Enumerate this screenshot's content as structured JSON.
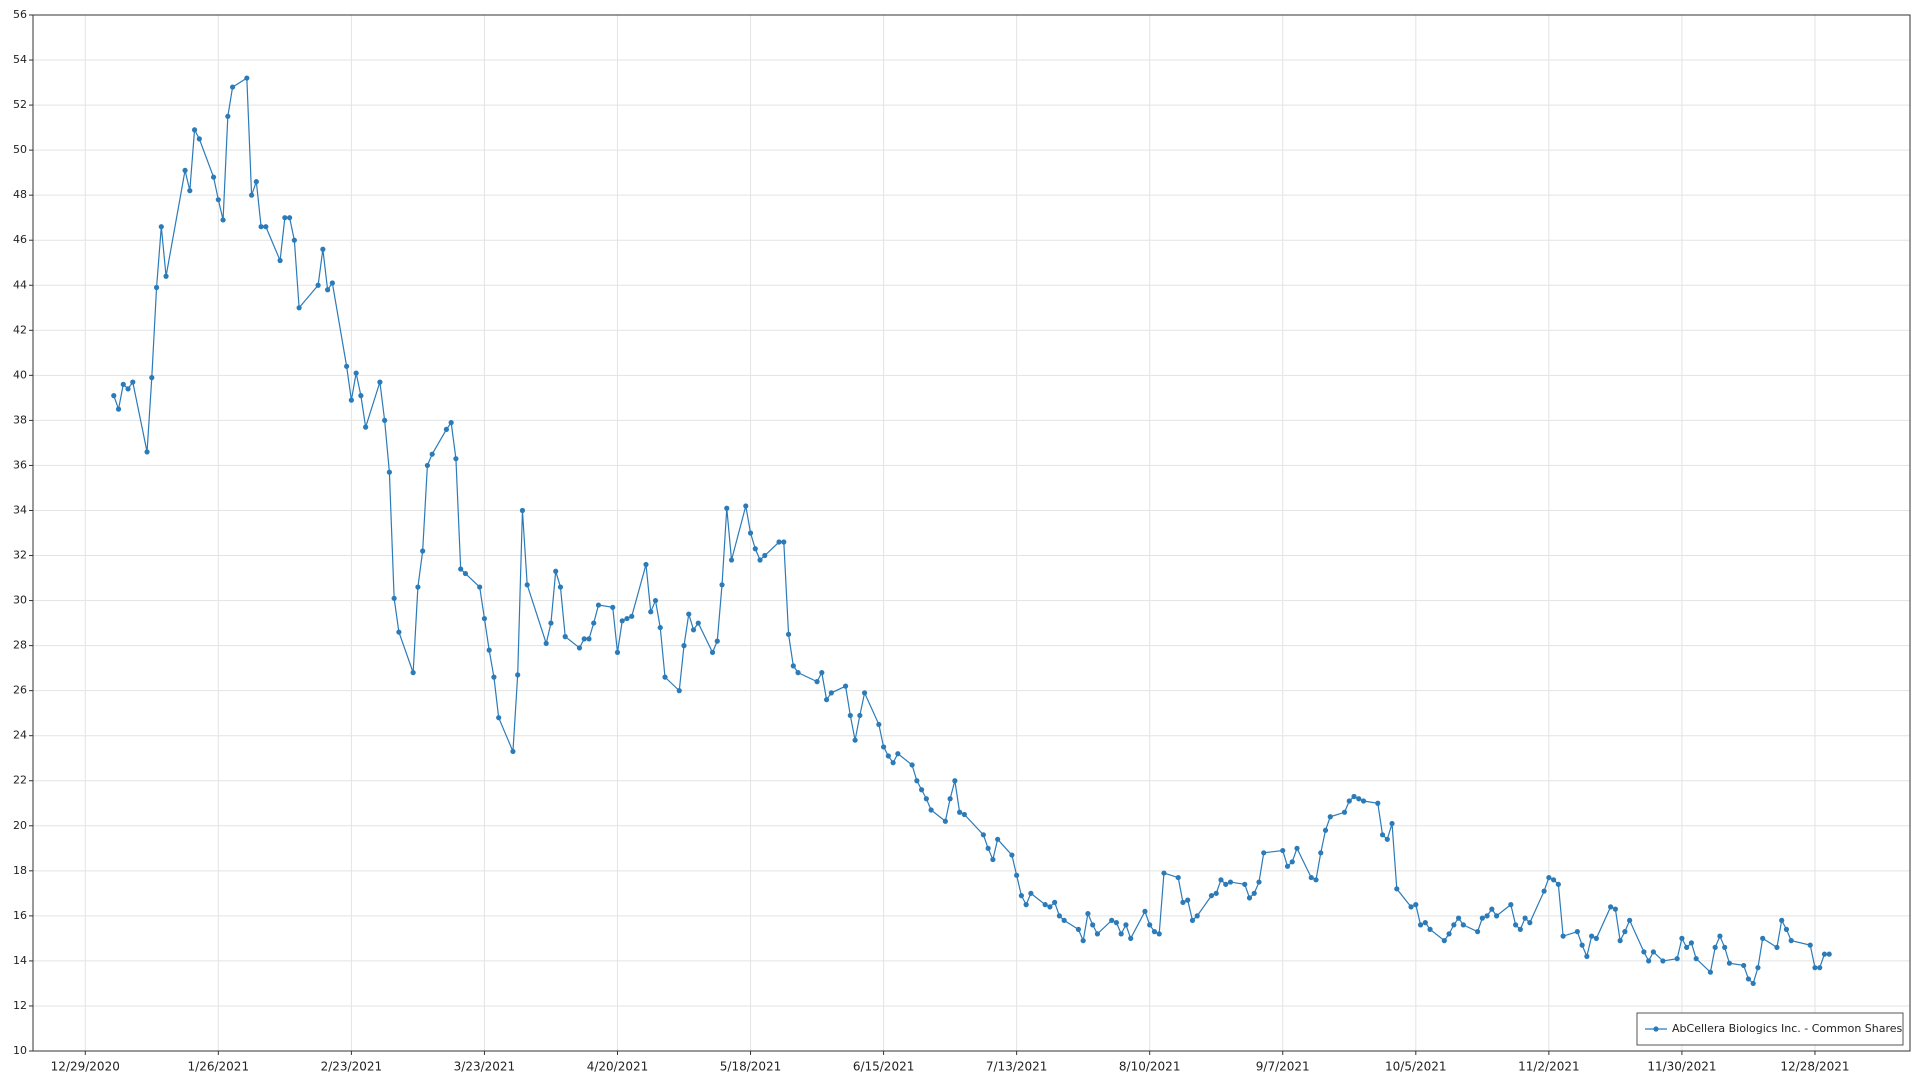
{
  "chart_data": {
    "type": "line",
    "x": [
      "1/4/2021",
      "1/5/2021",
      "1/6/2021",
      "1/7/2021",
      "1/8/2021",
      "1/11/2021",
      "1/12/2021",
      "1/13/2021",
      "1/14/2021",
      "1/15/2021",
      "1/19/2021",
      "1/20/2021",
      "1/21/2021",
      "1/22/2021",
      "1/25/2021",
      "1/26/2021",
      "1/27/2021",
      "1/28/2021",
      "1/29/2021",
      "2/1/2021",
      "2/2/2021",
      "2/3/2021",
      "2/4/2021",
      "2/5/2021",
      "2/8/2021",
      "2/9/2021",
      "2/10/2021",
      "2/11/2021",
      "2/12/2021",
      "2/16/2021",
      "2/17/2021",
      "2/18/2021",
      "2/19/2021",
      "2/22/2021",
      "2/23/2021",
      "2/24/2021",
      "2/25/2021",
      "2/26/2021",
      "3/1/2021",
      "3/2/2021",
      "3/3/2021",
      "3/4/2021",
      "3/5/2021",
      "3/8/2021",
      "3/9/2021",
      "3/10/2021",
      "3/11/2021",
      "3/12/2021",
      "3/15/2021",
      "3/16/2021",
      "3/17/2021",
      "3/18/2021",
      "3/19/2021",
      "3/22/2021",
      "3/23/2021",
      "3/24/2021",
      "3/25/2021",
      "3/26/2021",
      "3/29/2021",
      "3/30/2021",
      "3/31/2021",
      "4/1/2021",
      "4/5/2021",
      "4/6/2021",
      "4/7/2021",
      "4/8/2021",
      "4/9/2021",
      "4/12/2021",
      "4/13/2021",
      "4/14/2021",
      "4/15/2021",
      "4/16/2021",
      "4/19/2021",
      "4/20/2021",
      "4/21/2021",
      "4/22/2021",
      "4/23/2021",
      "4/26/2021",
      "4/27/2021",
      "4/28/2021",
      "4/29/2021",
      "4/30/2021",
      "5/3/2021",
      "5/4/2021",
      "5/5/2021",
      "5/6/2021",
      "5/7/2021",
      "5/10/2021",
      "5/11/2021",
      "5/12/2021",
      "5/13/2021",
      "5/14/2021",
      "5/17/2021",
      "5/18/2021",
      "5/19/2021",
      "5/20/2021",
      "5/21/2021",
      "5/24/2021",
      "5/25/2021",
      "5/26/2021",
      "5/27/2021",
      "5/28/2021",
      "6/1/2021",
      "6/2/2021",
      "6/3/2021",
      "6/4/2021",
      "6/7/2021",
      "6/8/2021",
      "6/9/2021",
      "6/10/2021",
      "6/11/2021",
      "6/14/2021",
      "6/15/2021",
      "6/16/2021",
      "6/17/2021",
      "6/18/2021",
      "6/21/2021",
      "6/22/2021",
      "6/23/2021",
      "6/24/2021",
      "6/25/2021",
      "6/28/2021",
      "6/29/2021",
      "6/30/2021",
      "7/1/2021",
      "7/2/2021",
      "7/6/2021",
      "7/7/2021",
      "7/8/2021",
      "7/9/2021",
      "7/12/2021",
      "7/13/2021",
      "7/14/2021",
      "7/15/2021",
      "7/16/2021",
      "7/19/2021",
      "7/20/2021",
      "7/21/2021",
      "7/22/2021",
      "7/23/2021",
      "7/26/2021",
      "7/27/2021",
      "7/28/2021",
      "7/29/2021",
      "7/30/2021",
      "8/2/2021",
      "8/3/2021",
      "8/4/2021",
      "8/5/2021",
      "8/6/2021",
      "8/9/2021",
      "8/10/2021",
      "8/11/2021",
      "8/12/2021",
      "8/13/2021",
      "8/16/2021",
      "8/17/2021",
      "8/18/2021",
      "8/19/2021",
      "8/20/2021",
      "8/23/2021",
      "8/24/2021",
      "8/25/2021",
      "8/26/2021",
      "8/27/2021",
      "8/30/2021",
      "8/31/2021",
      "9/1/2021",
      "9/2/2021",
      "9/3/2021",
      "9/7/2021",
      "9/8/2021",
      "9/9/2021",
      "9/10/2021",
      "9/13/2021",
      "9/14/2021",
      "9/15/2021",
      "9/16/2021",
      "9/17/2021",
      "9/20/2021",
      "9/21/2021",
      "9/22/2021",
      "9/23/2021",
      "9/24/2021",
      "9/27/2021",
      "9/28/2021",
      "9/29/2021",
      "9/30/2021",
      "10/1/2021",
      "10/4/2021",
      "10/5/2021",
      "10/6/2021",
      "10/7/2021",
      "10/8/2021",
      "10/11/2021",
      "10/12/2021",
      "10/13/2021",
      "10/14/2021",
      "10/15/2021",
      "10/18/2021",
      "10/19/2021",
      "10/20/2021",
      "10/21/2021",
      "10/22/2021",
      "10/25/2021",
      "10/26/2021",
      "10/27/2021",
      "10/28/2021",
      "10/29/2021",
      "11/1/2021",
      "11/2/2021",
      "11/3/2021",
      "11/4/2021",
      "11/5/2021",
      "11/8/2021",
      "11/9/2021",
      "11/10/2021",
      "11/11/2021",
      "11/12/2021",
      "11/15/2021",
      "11/16/2021",
      "11/17/2021",
      "11/18/2021",
      "11/19/2021",
      "11/22/2021",
      "11/23/2021",
      "11/24/2021",
      "11/26/2021",
      "11/29/2021",
      "11/30/2021",
      "12/1/2021",
      "12/2/2021",
      "12/3/2021",
      "12/6/2021",
      "12/7/2021",
      "12/8/2021",
      "12/9/2021",
      "12/10/2021",
      "12/13/2021",
      "12/14/2021",
      "12/15/2021",
      "12/16/2021",
      "12/17/2021",
      "12/20/2021",
      "12/21/2021",
      "12/22/2021",
      "12/23/2021",
      "12/27/2021",
      "12/28/2021",
      "12/29/2021",
      "12/30/2021",
      "12/31/2021"
    ],
    "series": [
      {
        "name": "AbCellera Biologics Inc. - Common Shares",
        "color": "#2b7bb9",
        "values": [
          39.1,
          38.5,
          39.6,
          39.4,
          39.7,
          36.6,
          39.9,
          43.9,
          46.6,
          44.4,
          49.1,
          48.2,
          50.9,
          50.5,
          48.8,
          47.8,
          46.9,
          51.5,
          52.8,
          53.2,
          48.0,
          48.6,
          46.6,
          46.6,
          45.1,
          47.0,
          47.0,
          46.0,
          43.0,
          44.0,
          45.6,
          43.8,
          44.1,
          40.4,
          38.9,
          40.1,
          39.1,
          37.7,
          39.7,
          38.0,
          35.7,
          30.1,
          28.6,
          26.8,
          30.6,
          32.2,
          36.0,
          36.5,
          37.6,
          37.9,
          36.3,
          31.4,
          31.2,
          30.6,
          29.2,
          27.8,
          26.6,
          24.8,
          23.3,
          26.7,
          34.0,
          30.7,
          28.1,
          29.0,
          31.3,
          30.6,
          28.4,
          27.9,
          28.3,
          28.3,
          29.0,
          29.8,
          29.7,
          27.7,
          29.1,
          29.2,
          29.3,
          31.6,
          29.5,
          30.0,
          28.8,
          26.6,
          26.0,
          28.0,
          29.4,
          28.7,
          29.0,
          27.7,
          28.2,
          30.7,
          34.1,
          31.8,
          34.2,
          33.0,
          32.3,
          31.8,
          32.0,
          32.6,
          32.6,
          28.5,
          27.1,
          26.8,
          26.4,
          26.8,
          25.6,
          25.9,
          26.2,
          24.9,
          23.8,
          24.9,
          25.9,
          24.5,
          23.5,
          23.1,
          22.8,
          23.2,
          22.7,
          22.0,
          21.6,
          21.2,
          20.7,
          20.2,
          21.2,
          22.0,
          20.6,
          20.5,
          19.6,
          19.0,
          18.5,
          19.4,
          18.7,
          17.8,
          16.9,
          16.5,
          17.0,
          16.5,
          16.4,
          16.6,
          16.0,
          15.8,
          15.4,
          14.9,
          16.1,
          15.6,
          15.2,
          15.8,
          15.7,
          15.2,
          15.6,
          15.0,
          16.2,
          15.6,
          15.3,
          15.2,
          17.9,
          17.7,
          16.6,
          16.7,
          15.8,
          16.0,
          16.9,
          17.0,
          17.6,
          17.4,
          17.5,
          17.4,
          16.8,
          17.0,
          17.5,
          18.8,
          18.9,
          18.2,
          18.4,
          19.0,
          17.7,
          17.6,
          18.8,
          19.8,
          20.4,
          20.6,
          21.1,
          21.3,
          21.2,
          21.1,
          21.0,
          19.6,
          19.4,
          20.1,
          17.2,
          16.4,
          16.5,
          15.6,
          15.7,
          15.4,
          14.9,
          15.2,
          15.6,
          15.9,
          15.6,
          15.3,
          15.9,
          16.0,
          16.3,
          16.0,
          16.5,
          15.6,
          15.4,
          15.9,
          15.7,
          17.1,
          17.7,
          17.6,
          17.4,
          15.1,
          15.3,
          14.7,
          14.2,
          15.1,
          15.0,
          16.4,
          16.3,
          14.9,
          15.3,
          15.8,
          14.4,
          14.0,
          14.4,
          14.0,
          14.1,
          15.0,
          14.6,
          14.8,
          14.1,
          13.5,
          14.6,
          15.1,
          14.6,
          13.9,
          13.8,
          13.2,
          13.0,
          13.7,
          15.0,
          14.6,
          15.8,
          15.4,
          14.9,
          14.7,
          13.7,
          13.7,
          14.3,
          14.3
        ]
      }
    ],
    "xlim": [
      "12/18/2020",
      "1/17/2022"
    ],
    "xticks": [
      "12/29/2020",
      "1/26/2021",
      "2/23/2021",
      "3/23/2021",
      "4/20/2021",
      "5/18/2021",
      "6/15/2021",
      "7/13/2021",
      "8/10/2021",
      "9/7/2021",
      "10/5/2021",
      "11/2/2021",
      "11/30/2021",
      "12/28/2021"
    ],
    "ylim": [
      10,
      56
    ],
    "yticks": [
      10,
      12,
      14,
      16,
      18,
      20,
      22,
      24,
      26,
      28,
      30,
      32,
      34,
      36,
      38,
      40,
      42,
      44,
      46,
      48,
      50,
      52,
      54,
      56
    ],
    "grid": true,
    "legend": "bottom-right"
  }
}
